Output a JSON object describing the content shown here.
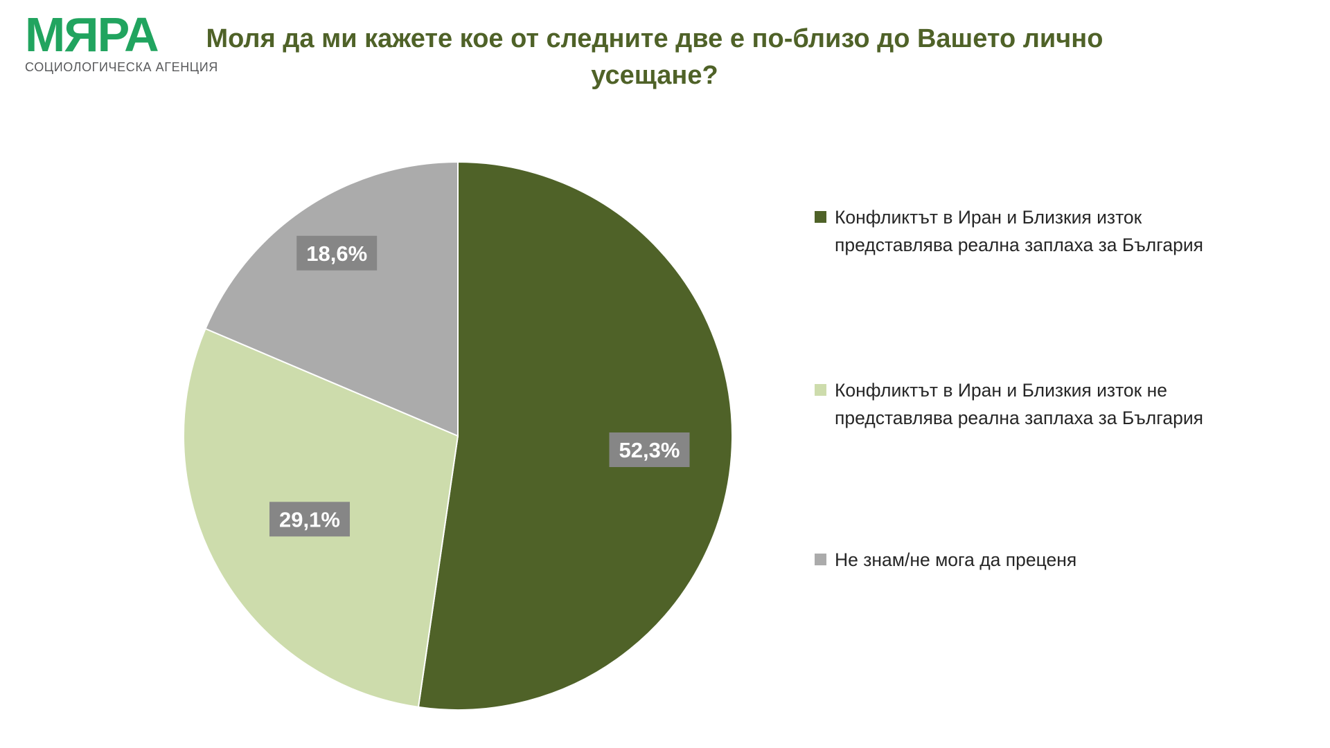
{
  "logo": {
    "name": "МЯРА",
    "tagline": "СОЦИОЛОГИЧЕСКА АГЕНЦИЯ",
    "color": "#21A45F"
  },
  "title": {
    "text": "Моля да ми кажете кое от следните две е по-близо до Вашето лично усещане?",
    "color": "#4F6228"
  },
  "chart_data": {
    "type": "pie",
    "title": "Моля да ми кажете кое от следните две е по-близо до Вашето лично усещане?",
    "direction": "clockwise",
    "start_angle_deg": 0,
    "legend_position": "right",
    "label_box_color": "#868686",
    "label_text_color": "#FFFFFF",
    "slices": [
      {
        "label": "Конфликтът в Иран и Близкия изток представлява реална заплаха за България",
        "value": 52.3,
        "display": "52,3%",
        "color": "#4F6228"
      },
      {
        "label": "Конфликтът в Иран и Близкия изток не представлява реална заплаха за България",
        "value": 29.1,
        "display": "29,1%",
        "color": "#CDDCAC"
      },
      {
        "label": "Не знам/не мога да преценя",
        "value": 18.6,
        "display": "18,6%",
        "color": "#ABABAB"
      }
    ]
  }
}
